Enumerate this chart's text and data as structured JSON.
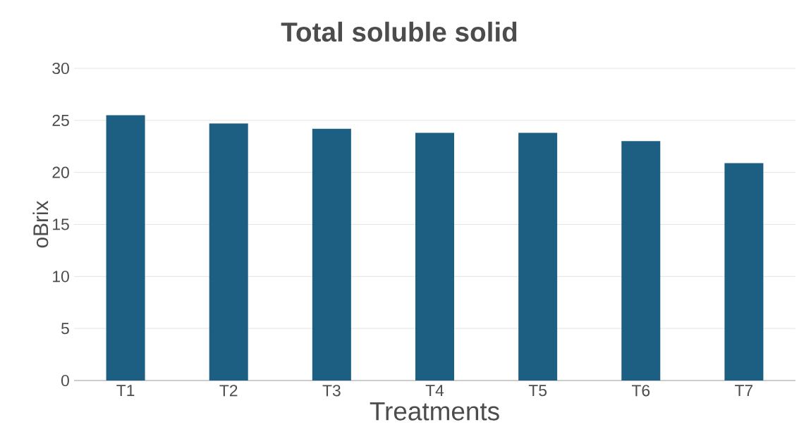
{
  "chart_data": {
    "type": "bar",
    "title": "Total soluble solid",
    "xlabel": "Treatments",
    "ylabel": "oBrix",
    "categories": [
      "T1",
      "T2",
      "T3",
      "T4",
      "T5",
      "T6",
      "T7"
    ],
    "values": [
      25.5,
      24.7,
      24.2,
      23.8,
      23.8,
      23.0,
      20.9
    ],
    "color": "#1c5f82",
    "ylim": [
      0,
      30
    ],
    "yticks": [
      0,
      5,
      10,
      15,
      20,
      25,
      30
    ],
    "grid": "y"
  }
}
